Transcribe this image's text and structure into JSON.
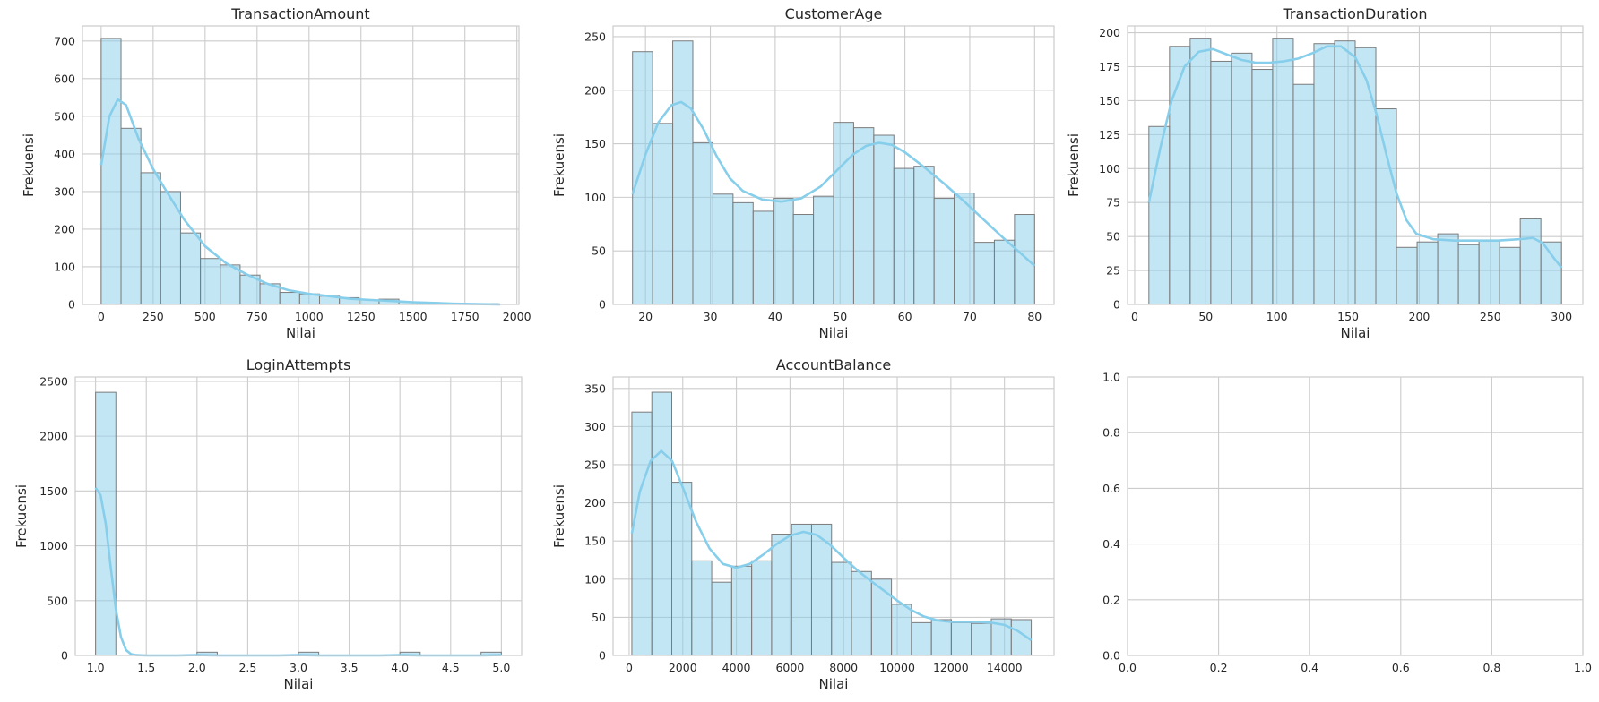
{
  "colors": {
    "bar": "#87ceeb",
    "bar_edge": "#7b7b7b",
    "kde": "#87ceeb",
    "grid": "#cccccc"
  },
  "chart_data": [
    {
      "type": "bar",
      "title": "TransactionAmount",
      "xlabel": "Nilai",
      "ylabel": "Frekuensi",
      "xlim": [
        -90,
        2010
      ],
      "ylim": [
        0,
        740
      ],
      "xticks": [
        0,
        250,
        500,
        750,
        1000,
        1250,
        1500,
        1750,
        2000
      ],
      "yticks": [
        0,
        100,
        200,
        300,
        400,
        500,
        600,
        700
      ],
      "bin_start": 0,
      "bin_width": 95.5,
      "values": [
        707,
        468,
        350,
        300,
        190,
        122,
        105,
        78,
        55,
        32,
        28,
        22,
        18,
        12,
        14,
        6,
        5,
        3,
        2,
        2
      ],
      "kde": [
        [
          0,
          370
        ],
        [
          40,
          500
        ],
        [
          80,
          545
        ],
        [
          120,
          530
        ],
        [
          180,
          440
        ],
        [
          250,
          360
        ],
        [
          320,
          295
        ],
        [
          400,
          225
        ],
        [
          500,
          155
        ],
        [
          600,
          110
        ],
        [
          700,
          80
        ],
        [
          800,
          55
        ],
        [
          900,
          38
        ],
        [
          1000,
          28
        ],
        [
          1100,
          22
        ],
        [
          1200,
          15
        ],
        [
          1300,
          12
        ],
        [
          1400,
          9
        ],
        [
          1500,
          6
        ],
        [
          1600,
          4
        ],
        [
          1700,
          2
        ],
        [
          1800,
          1
        ],
        [
          1920,
          0
        ]
      ]
    },
    {
      "type": "bar",
      "title": "CustomerAge",
      "xlabel": "Nilai",
      "ylabel": "Frekuensi",
      "xlim": [
        15,
        83
      ],
      "ylim": [
        0,
        260
      ],
      "xticks": [
        20,
        30,
        40,
        50,
        60,
        70,
        80
      ],
      "yticks": [
        0,
        50,
        100,
        150,
        200,
        250
      ],
      "bin_start": 18,
      "bin_width": 3.1,
      "values": [
        236,
        169,
        246,
        151,
        103,
        95,
        87,
        99,
        84,
        101,
        170,
        165,
        158,
        127,
        129,
        99,
        104,
        58,
        60,
        84
      ],
      "kde": [
        [
          18,
          103
        ],
        [
          20,
          140
        ],
        [
          22,
          170
        ],
        [
          24,
          186
        ],
        [
          25.5,
          189
        ],
        [
          27,
          183
        ],
        [
          29,
          163
        ],
        [
          31,
          138
        ],
        [
          33,
          118
        ],
        [
          35,
          106
        ],
        [
          38,
          98
        ],
        [
          41,
          96
        ],
        [
          44,
          99
        ],
        [
          47,
          110
        ],
        [
          50,
          128
        ],
        [
          52,
          140
        ],
        [
          54,
          148
        ],
        [
          56,
          151
        ],
        [
          58,
          149
        ],
        [
          60,
          142
        ],
        [
          63,
          128
        ],
        [
          66,
          113
        ],
        [
          69,
          97
        ],
        [
          72,
          80
        ],
        [
          75,
          63
        ],
        [
          78,
          47
        ],
        [
          80,
          36
        ]
      ]
    },
    {
      "type": "bar",
      "title": "TransactionDuration",
      "xlabel": "Nilai",
      "ylabel": "Frekuensi",
      "xlim": [
        -5,
        315
      ],
      "ylim": [
        0,
        205
      ],
      "xticks": [
        0,
        50,
        100,
        150,
        200,
        250,
        300
      ],
      "yticks": [
        0,
        25,
        50,
        75,
        100,
        125,
        150,
        175,
        200
      ],
      "bin_start": 10,
      "bin_width": 14.5,
      "values": [
        131,
        190,
        196,
        179,
        185,
        173,
        196,
        162,
        192,
        194,
        189,
        144,
        42,
        46,
        52,
        44,
        47,
        42,
        63,
        46
      ],
      "kde": [
        [
          10,
          75
        ],
        [
          18,
          115
        ],
        [
          26,
          150
        ],
        [
          35,
          175
        ],
        [
          45,
          186
        ],
        [
          55,
          188
        ],
        [
          65,
          184
        ],
        [
          75,
          180
        ],
        [
          85,
          178
        ],
        [
          95,
          178
        ],
        [
          105,
          179
        ],
        [
          115,
          181
        ],
        [
          125,
          185
        ],
        [
          135,
          190
        ],
        [
          145,
          190
        ],
        [
          155,
          182
        ],
        [
          163,
          165
        ],
        [
          170,
          140
        ],
        [
          177,
          110
        ],
        [
          184,
          82
        ],
        [
          191,
          62
        ],
        [
          198,
          52
        ],
        [
          210,
          48
        ],
        [
          225,
          47
        ],
        [
          240,
          47
        ],
        [
          255,
          47
        ],
        [
          270,
          48
        ],
        [
          280,
          49
        ],
        [
          287,
          45
        ],
        [
          294,
          35
        ],
        [
          300,
          27
        ]
      ]
    },
    {
      "type": "bar",
      "title": "LoginAttempts",
      "xlabel": "Nilai",
      "ylabel": "Frekuensi",
      "xlim": [
        0.8,
        5.2
      ],
      "ylim": [
        0,
        2540
      ],
      "xticks": [
        1.0,
        1.5,
        2.0,
        2.5,
        3.0,
        3.5,
        4.0,
        4.5,
        5.0
      ],
      "yticks": [
        0,
        500,
        1000,
        1500,
        2000,
        2500
      ],
      "bin_start": 1.0,
      "bin_width": 0.2,
      "values": [
        2400,
        0,
        0,
        0,
        0,
        30,
        0,
        0,
        0,
        0,
        30,
        0,
        0,
        0,
        0,
        30,
        0,
        0,
        0,
        30
      ],
      "kde": [
        [
          1.0,
          1530
        ],
        [
          1.05,
          1460
        ],
        [
          1.1,
          1200
        ],
        [
          1.15,
          800
        ],
        [
          1.2,
          420
        ],
        [
          1.25,
          170
        ],
        [
          1.3,
          50
        ],
        [
          1.35,
          12
        ],
        [
          1.4,
          3
        ],
        [
          1.5,
          0
        ],
        [
          1.8,
          0
        ],
        [
          2.0,
          3
        ],
        [
          2.2,
          0
        ],
        [
          2.8,
          0
        ],
        [
          3.0,
          3
        ],
        [
          3.2,
          0
        ],
        [
          3.8,
          0
        ],
        [
          4.0,
          3
        ],
        [
          4.2,
          0
        ],
        [
          4.8,
          0
        ],
        [
          5.0,
          3
        ]
      ]
    },
    {
      "type": "bar",
      "title": "AccountBalance",
      "xlabel": "Nilai",
      "ylabel": "Frekuensi",
      "xlim": [
        -600,
        15850
      ],
      "ylim": [
        0,
        365
      ],
      "xticks": [
        0,
        2000,
        4000,
        6000,
        8000,
        10000,
        12000,
        14000
      ],
      "yticks": [
        0,
        50,
        100,
        150,
        200,
        250,
        300,
        350
      ],
      "bin_start": 100,
      "bin_width": 745,
      "values": [
        319,
        345,
        227,
        124,
        96,
        117,
        124,
        159,
        172,
        172,
        122,
        110,
        100,
        67,
        43,
        47,
        43,
        42,
        48,
        47
      ],
      "kde": [
        [
          100,
          160
        ],
        [
          400,
          215
        ],
        [
          800,
          255
        ],
        [
          1200,
          268
        ],
        [
          1600,
          255
        ],
        [
          2000,
          220
        ],
        [
          2500,
          175
        ],
        [
          3000,
          140
        ],
        [
          3500,
          120
        ],
        [
          4000,
          115
        ],
        [
          4500,
          120
        ],
        [
          5000,
          132
        ],
        [
          5500,
          146
        ],
        [
          6000,
          157
        ],
        [
          6500,
          162
        ],
        [
          7000,
          158
        ],
        [
          7500,
          145
        ],
        [
          8000,
          128
        ],
        [
          8500,
          112
        ],
        [
          9000,
          98
        ],
        [
          9500,
          85
        ],
        [
          10000,
          72
        ],
        [
          10500,
          60
        ],
        [
          11000,
          51
        ],
        [
          11500,
          46
        ],
        [
          12000,
          44
        ],
        [
          12500,
          44
        ],
        [
          13000,
          44
        ],
        [
          13500,
          43
        ],
        [
          14000,
          40
        ],
        [
          14500,
          32
        ],
        [
          15000,
          20
        ]
      ]
    },
    {
      "type": "bar",
      "title": "",
      "xlabel": "",
      "ylabel": "",
      "xlim": [
        0,
        1
      ],
      "ylim": [
        0,
        1
      ],
      "xticks": [
        0.0,
        0.2,
        0.4,
        0.6,
        0.8,
        1.0
      ],
      "yticks": [
        0.0,
        0.2,
        0.4,
        0.6,
        0.8,
        1.0
      ],
      "values": [],
      "kde": []
    }
  ]
}
